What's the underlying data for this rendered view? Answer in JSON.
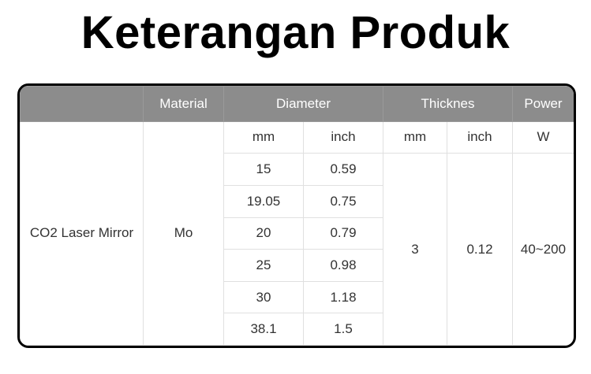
{
  "header": {
    "title": "Keterangan Produk"
  },
  "table": {
    "headers": [
      "Material",
      "Diameter",
      "Thicknes",
      "Power"
    ],
    "subheaders": [
      "mm",
      "inch",
      "mm",
      "inch",
      "W"
    ],
    "product": "CO2 Laser Mirror",
    "material": "Mo",
    "diameters": [
      [
        "15",
        "0.59"
      ],
      [
        "19.05",
        "0.75"
      ],
      [
        "20",
        "0.79"
      ],
      [
        "25",
        "0.98"
      ],
      [
        "30",
        "1.18"
      ],
      [
        "38.1",
        "1.5"
      ]
    ],
    "thickness_mm": "3",
    "thickness_inch": "0.12",
    "power": "40~200"
  }
}
